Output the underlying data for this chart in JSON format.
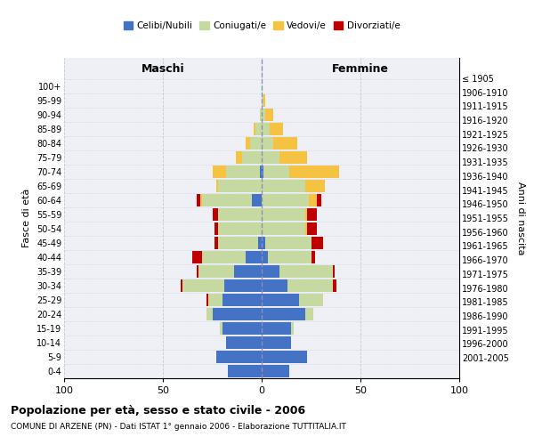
{
  "age_groups": [
    "0-4",
    "5-9",
    "10-14",
    "15-19",
    "20-24",
    "25-29",
    "30-34",
    "35-39",
    "40-44",
    "45-49",
    "50-54",
    "55-59",
    "60-64",
    "65-69",
    "70-74",
    "75-79",
    "80-84",
    "85-89",
    "90-94",
    "95-99",
    "100+"
  ],
  "birth_years": [
    "2001-2005",
    "1996-2000",
    "1991-1995",
    "1986-1990",
    "1981-1985",
    "1976-1980",
    "1971-1975",
    "1966-1970",
    "1961-1965",
    "1956-1960",
    "1951-1955",
    "1946-1950",
    "1941-1945",
    "1936-1940",
    "1931-1935",
    "1926-1930",
    "1921-1925",
    "1916-1920",
    "1911-1915",
    "1906-1910",
    "≤ 1905"
  ],
  "males": {
    "celibi": [
      17,
      23,
      18,
      20,
      25,
      20,
      19,
      14,
      8,
      2,
      0,
      0,
      5,
      0,
      1,
      0,
      0,
      0,
      0,
      0,
      0
    ],
    "coniugati": [
      0,
      0,
      0,
      1,
      3,
      7,
      21,
      18,
      22,
      20,
      22,
      22,
      25,
      22,
      17,
      10,
      6,
      3,
      1,
      0,
      0
    ],
    "vedovi": [
      0,
      0,
      0,
      0,
      0,
      0,
      0,
      0,
      0,
      0,
      0,
      0,
      1,
      1,
      7,
      3,
      2,
      1,
      0,
      0,
      0
    ],
    "divorziati": [
      0,
      0,
      0,
      0,
      0,
      1,
      1,
      1,
      5,
      2,
      2,
      3,
      2,
      0,
      0,
      0,
      0,
      0,
      0,
      0,
      0
    ]
  },
  "females": {
    "nubili": [
      14,
      23,
      15,
      15,
      22,
      19,
      13,
      9,
      3,
      2,
      0,
      0,
      0,
      0,
      1,
      0,
      0,
      0,
      0,
      0,
      0
    ],
    "coniugate": [
      0,
      0,
      0,
      1,
      4,
      12,
      23,
      27,
      22,
      23,
      22,
      22,
      24,
      22,
      13,
      9,
      6,
      4,
      2,
      1,
      0
    ],
    "vedove": [
      0,
      0,
      0,
      0,
      0,
      0,
      0,
      0,
      0,
      0,
      1,
      1,
      4,
      10,
      25,
      14,
      12,
      7,
      4,
      1,
      0
    ],
    "divorziate": [
      0,
      0,
      0,
      0,
      0,
      0,
      2,
      1,
      2,
      6,
      5,
      5,
      2,
      0,
      0,
      0,
      0,
      0,
      0,
      0,
      0
    ]
  },
  "colors": {
    "celibi": "#4472c4",
    "coniugati": "#c5d9a0",
    "vedovi": "#f5c242",
    "divorziati": "#c00000"
  },
  "title": "Popolazione per età, sesso e stato civile - 2006",
  "subtitle": "COMUNE DI ARZENE (PN) - Dati ISTAT 1° gennaio 2006 - Elaborazione TUTTITALIA.IT",
  "xlabel_left": "Maschi",
  "xlabel_right": "Femmine",
  "ylabel_left": "Fasce di età",
  "ylabel_right": "Anni di nascita",
  "legend_labels": [
    "Celibi/Nubili",
    "Coniugati/e",
    "Vedovi/e",
    "Divorziati/e"
  ],
  "xlim": 100,
  "background_color": "#eef0f5"
}
